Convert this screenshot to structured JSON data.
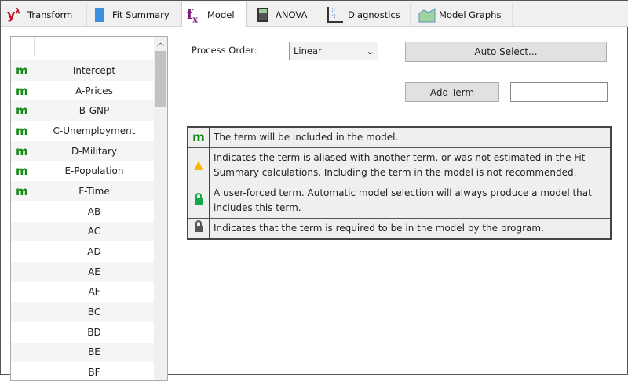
{
  "tabs": [
    {
      "label": "Transform",
      "icon": "lambda-icon"
    },
    {
      "label": "Fit Summary",
      "icon": "document-icon"
    },
    {
      "label": "Model",
      "icon": "fx-icon",
      "active": true
    },
    {
      "label": "ANOVA",
      "icon": "calculator-icon"
    },
    {
      "label": "Diagnostics",
      "icon": "scatter-icon"
    },
    {
      "label": "Model Graphs",
      "icon": "area-chart-icon"
    }
  ],
  "terms": [
    {
      "m": "m",
      "name": "Intercept"
    },
    {
      "m": "m",
      "name": "A-Prices"
    },
    {
      "m": "m",
      "name": "B-GNP"
    },
    {
      "m": "m",
      "name": "C-Unemployment"
    },
    {
      "m": "m",
      "name": "D-Military"
    },
    {
      "m": "m",
      "name": "E-Population"
    },
    {
      "m": "m",
      "name": "F-Time"
    },
    {
      "m": "",
      "name": "AB"
    },
    {
      "m": "",
      "name": "AC"
    },
    {
      "m": "",
      "name": "AD"
    },
    {
      "m": "",
      "name": "AE"
    },
    {
      "m": "",
      "name": "AF"
    },
    {
      "m": "",
      "name": "BC"
    },
    {
      "m": "",
      "name": "BD"
    },
    {
      "m": "",
      "name": "BE"
    },
    {
      "m": "",
      "name": "BF"
    }
  ],
  "process_order": {
    "label": "Process Order:",
    "value": "Linear"
  },
  "auto_select": "Auto Select...",
  "add_term": "Add Term",
  "add_term_value": "",
  "legend": [
    {
      "icon": "m",
      "text": "The term will be included in the model."
    },
    {
      "icon": "warning-icon",
      "text": "Indicates the term is aliased with another term, or was not estimated in the Fit Summary calculations. Including the term in the model is not recommended."
    },
    {
      "icon": "green-lock-icon",
      "text": "A user-forced term. Automatic model selection will always produce a model that includes this term."
    },
    {
      "icon": "gray-lock-icon",
      "text": "Indicates that the term is required to be in the model by the program."
    }
  ],
  "colors": {
    "m": "#198a19",
    "lock_green": "#1aa64a",
    "lock_gray": "#555555",
    "warning": "#f5b800",
    "fx": "#7a1a7a",
    "lambda": "#c0102a"
  }
}
